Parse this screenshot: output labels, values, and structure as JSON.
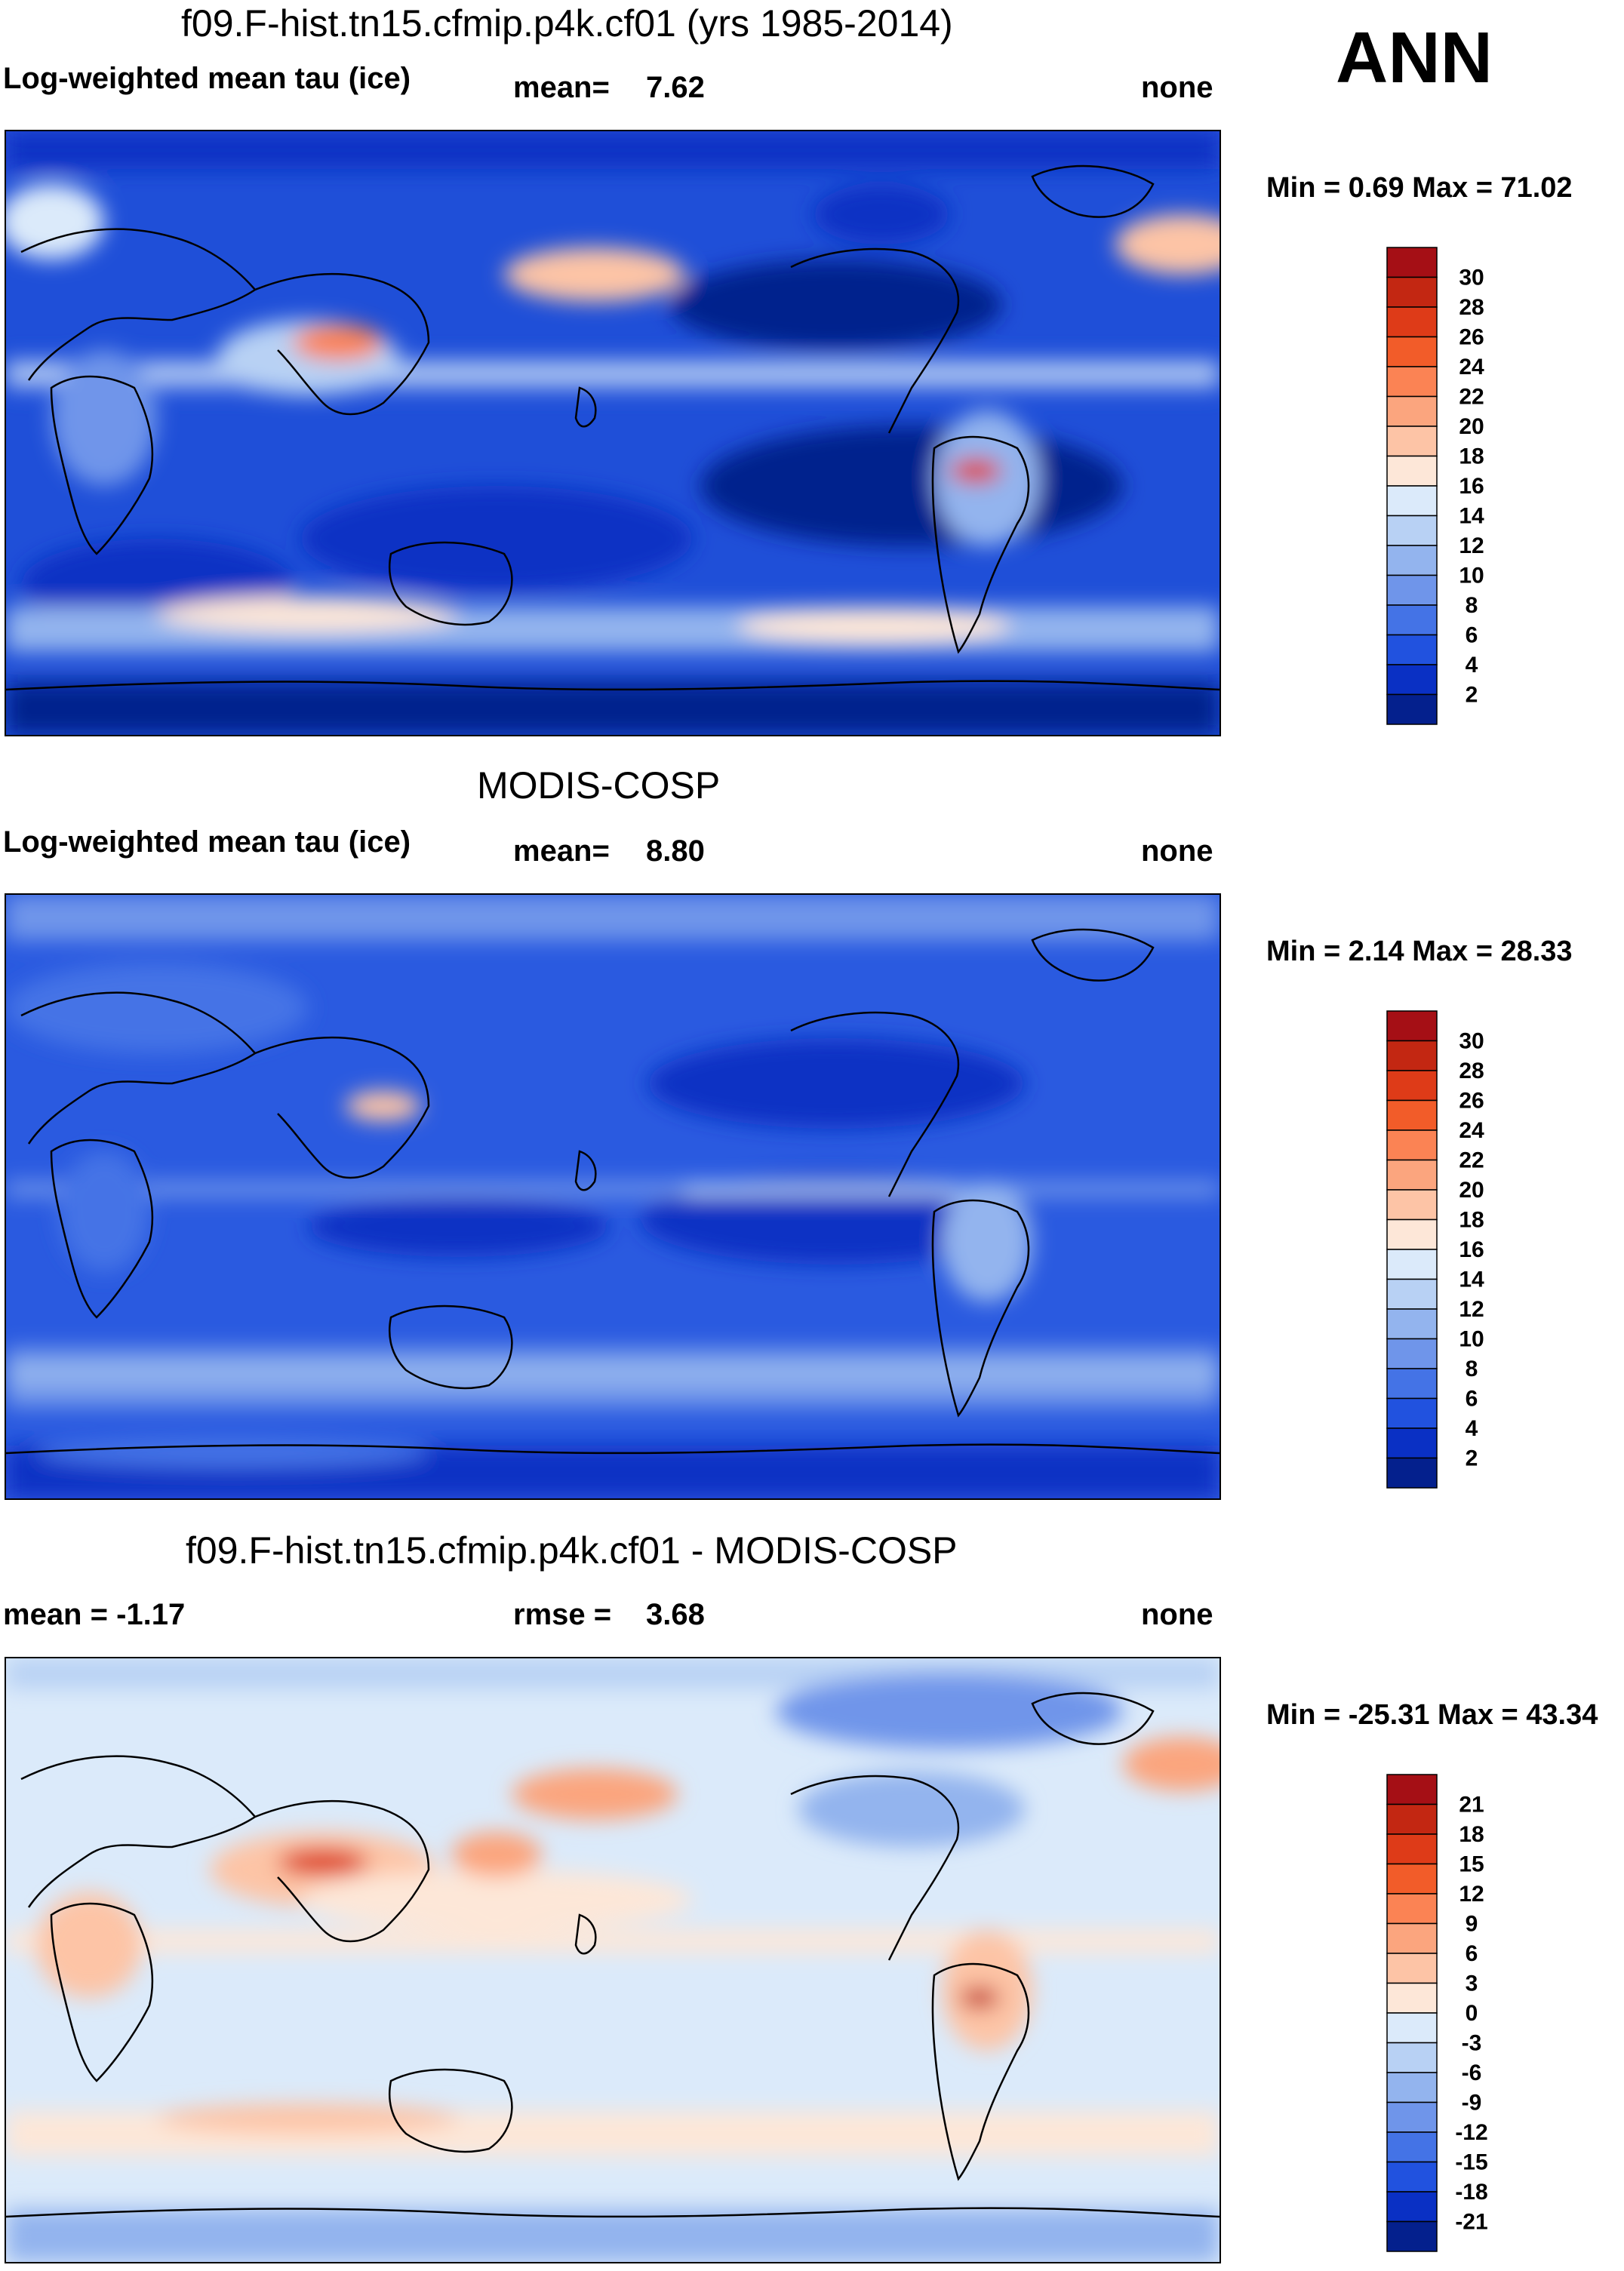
{
  "season": "ANN",
  "panels": [
    {
      "title": "f09.F-hist.tn15.cfmip.p4k.cf01 (yrs 1985-2014)",
      "left_label": "Log-weighted mean tau (ice)",
      "center_label": "mean=",
      "center_value": "7.62",
      "right_label": "none",
      "minmax": "Min =   0.69 Max =  71.02",
      "colorbar": {
        "labels": [
          "30",
          "28",
          "26",
          "24",
          "22",
          "20",
          "18",
          "16",
          "14",
          "12",
          "10",
          "8",
          "6",
          "4",
          "2"
        ],
        "colors": [
          "#a50f15",
          "#c32712",
          "#de3b18",
          "#f25c29",
          "#fb8354",
          "#fba57e",
          "#fdc4a6",
          "#fde7d8",
          "#dbeafa",
          "#b8d1f4",
          "#93b4ee",
          "#6f95ea",
          "#4473e6",
          "#2152df",
          "#0a30c4",
          "#04208d"
        ]
      }
    },
    {
      "title": "MODIS-COSP",
      "left_label": "Log-weighted mean tau (ice)",
      "center_label": "mean=",
      "center_value": "8.80",
      "right_label": "none",
      "minmax": "Min =   2.14 Max =  28.33",
      "colorbar": {
        "labels": [
          "30",
          "28",
          "26",
          "24",
          "22",
          "20",
          "18",
          "16",
          "14",
          "12",
          "10",
          "8",
          "6",
          "4",
          "2"
        ],
        "colors": [
          "#a50f15",
          "#c32712",
          "#de3b18",
          "#f25c29",
          "#fb8354",
          "#fba57e",
          "#fdc4a6",
          "#fde7d8",
          "#dbeafa",
          "#b8d1f4",
          "#93b4ee",
          "#6f95ea",
          "#4473e6",
          "#2152df",
          "#0a30c4",
          "#04208d"
        ]
      }
    },
    {
      "title": "f09.F-hist.tn15.cfmip.p4k.cf01 - MODIS-COSP",
      "left_label": "mean =  -1.17",
      "center_label": "rmse =",
      "center_value": "3.68",
      "right_label": "none",
      "minmax": "Min = -25.31 Max =  43.34",
      "colorbar": {
        "labels": [
          "21",
          "18",
          "15",
          "12",
          "9",
          "6",
          "3",
          "0",
          "-3",
          "-6",
          "-9",
          "-12",
          "-15",
          "-18",
          "-21"
        ],
        "colors": [
          "#a50f15",
          "#c32712",
          "#de3b18",
          "#f25c29",
          "#fb8354",
          "#fba57e",
          "#fdc4a6",
          "#fde7d8",
          "#dbeafa",
          "#b8d1f4",
          "#93b4ee",
          "#6f95ea",
          "#4473e6",
          "#2152df",
          "#0a30c4",
          "#04208d"
        ]
      }
    }
  ],
  "chart_data": [
    {
      "type": "heatmap",
      "title": "f09.F-hist.tn15.cfmip.p4k.cf01 (yrs 1985-2014)",
      "variable": "Log-weighted mean tau (ice)",
      "units": "none",
      "mean": 7.62,
      "min": 0.69,
      "max": 71.02,
      "colorbar_levels": [
        2,
        4,
        6,
        8,
        10,
        12,
        14,
        16,
        18,
        20,
        22,
        24,
        26,
        28,
        30
      ]
    },
    {
      "type": "heatmap",
      "title": "MODIS-COSP",
      "variable": "Log-weighted mean tau (ice)",
      "units": "none",
      "mean": 8.8,
      "min": 2.14,
      "max": 28.33,
      "colorbar_levels": [
        2,
        4,
        6,
        8,
        10,
        12,
        14,
        16,
        18,
        20,
        22,
        24,
        26,
        28,
        30
      ]
    },
    {
      "type": "heatmap",
      "title": "f09.F-hist.tn15.cfmip.p4k.cf01 - MODIS-COSP",
      "units": "none",
      "mean": -1.17,
      "rmse": 3.68,
      "min": -25.31,
      "max": 43.34,
      "colorbar_levels": [
        -21,
        -18,
        -15,
        -12,
        -9,
        -6,
        -3,
        0,
        3,
        6,
        9,
        12,
        15,
        18,
        21
      ]
    }
  ]
}
